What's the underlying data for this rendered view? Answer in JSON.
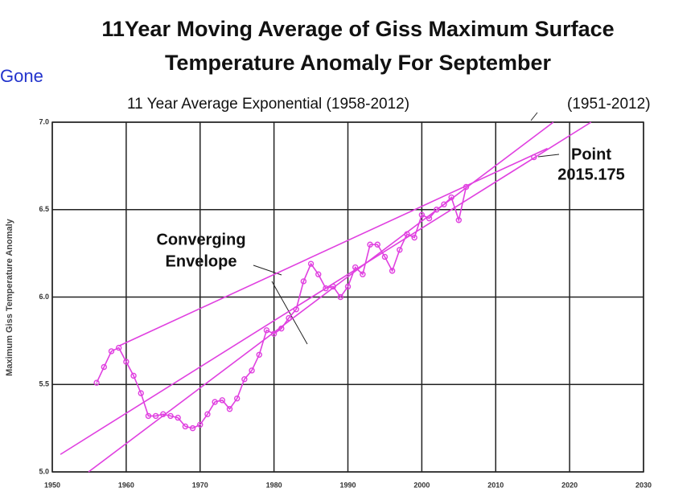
{
  "chart_data": {
    "type": "line",
    "title": [
      "11Year Moving Average of Giss Maximum  Surface",
      "Temperature Anomaly For September"
    ],
    "subtitle": "11 Year Average Exponential (1958-2012)",
    "side_label": "Gone",
    "ylabel": "Maximum Giss Temperature Anomaly",
    "xlim": [
      1950,
      2030
    ],
    "xticks": [
      1950,
      1960,
      1970,
      1980,
      1990,
      2000,
      2010,
      2020,
      2030
    ],
    "ylim": [
      5,
      7
    ],
    "yticks": [
      {
        "value": 5,
        "label": "5.0"
      },
      5.5,
      {
        "value": 6,
        "label": "6.0"
      },
      6.5,
      {
        "value": 7,
        "label": "7.0"
      }
    ],
    "grid": true,
    "series": [
      {
        "color": "#e040e0",
        "markers": true,
        "x": [
          1956,
          1957,
          1958,
          1959,
          1960,
          1961,
          1962,
          1963,
          1964,
          1965,
          1966,
          1967,
          1968,
          1969,
          1970,
          1971,
          1972,
          1973,
          1974,
          1975,
          1976,
          1977,
          1978,
          1979,
          1980,
          1981,
          1982,
          1983,
          1984,
          1985,
          1986,
          1987,
          1988,
          1989,
          1990,
          1991,
          1992,
          1993,
          1994,
          1995,
          1996,
          1997,
          1998,
          1999,
          2000,
          2001,
          2002,
          2003,
          2004,
          2005,
          2006
        ],
        "values": [
          5.51,
          5.6,
          5.69,
          5.71,
          5.63,
          5.55,
          5.45,
          5.32,
          5.32,
          5.33,
          5.32,
          5.31,
          5.26,
          5.25,
          5.27,
          5.33,
          5.4,
          5.41,
          5.36,
          5.42,
          5.53,
          5.58,
          5.67,
          5.81,
          5.79,
          5.82,
          5.88,
          5.93,
          6.09,
          6.19,
          6.13,
          6.05,
          6.06,
          6,
          6.06,
          6.17,
          6.13,
          6.3,
          6.3,
          6.23,
          6.15,
          6.27,
          6.36,
          6.34,
          6.47,
          6.45,
          6.5,
          6.53,
          6.57,
          6.44,
          6.63
        ]
      },
      {
        "color": "#e040e0",
        "markers": true,
        "x": [
          2015.175
        ],
        "values": [
          6.8
        ]
      },
      {
        "color": "#e040e0",
        "markers": false,
        "x": [
          1959,
          2017
        ],
        "values": [
          5.72,
          6.85
        ]
      },
      {
        "color": "#e040e0",
        "markers": false,
        "x": [
          1954.9,
          2017.8
        ],
        "values": [
          5,
          7
        ]
      },
      {
        "color": "#e040e0",
        "markers": false,
        "x": [
          1951.1,
          2022.9
        ],
        "values": [
          5.1,
          7
        ]
      }
    ],
    "annotations": [
      {
        "text": [
          "Converging",
          "Envelope"
        ]
      },
      {
        "text": [
          "Point",
          "2015.175"
        ]
      },
      {
        "text": "(1951-2012)"
      }
    ]
  }
}
